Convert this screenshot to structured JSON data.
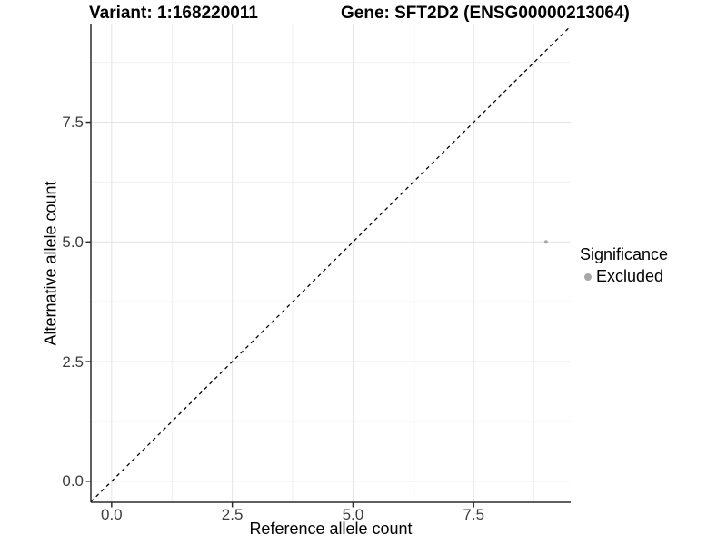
{
  "title": {
    "variant": "Variant: 1:168220011",
    "gene": "Gene: SFT2D2 (ENSG00000213064)"
  },
  "axes": {
    "x_label": "Reference allele count",
    "y_label": "Alternative allele count",
    "x_tick_labels": [
      "0.0",
      "2.5",
      "5.0",
      "7.5"
    ],
    "y_tick_labels": [
      "0.0",
      "2.5",
      "5.0",
      "7.5"
    ]
  },
  "legend": {
    "title": "Significance",
    "items": [
      {
        "label": "Excluded",
        "color": "#a8a8a8"
      }
    ]
  },
  "colors": {
    "background": "#ffffff",
    "grid_major": "#e4e4e4",
    "grid_minor": "#efefef",
    "axis_line": "#2b2b2b",
    "tick_mark": "#2b2b2b",
    "tick_label": "#3d3d3d",
    "title_text": "#000000",
    "point": "#a8a8a8",
    "reference_line": "#000000"
  },
  "chart_data": {
    "type": "scatter",
    "title": "Variant: 1:168220011   Gene: SFT2D2 (ENSG00000213064)",
    "xlabel": "Reference allele count",
    "ylabel": "Alternative allele count",
    "xlim": [
      -0.43,
      9.51
    ],
    "ylim": [
      -0.44,
      9.56
    ],
    "x_ticks": [
      0.0,
      2.5,
      5.0,
      7.5
    ],
    "y_ticks": [
      0.0,
      2.5,
      5.0,
      7.5
    ],
    "x_minor_ticks": [
      1.25,
      3.75,
      6.25,
      8.75
    ],
    "y_minor_ticks": [
      1.25,
      3.75,
      6.25,
      8.75
    ],
    "grid": true,
    "legend_position": "right",
    "series": [
      {
        "name": "Excluded",
        "color": "#a8a8a8",
        "marker": "circle",
        "points": [
          {
            "x": 9,
            "y": 5
          }
        ]
      }
    ],
    "reference_line": {
      "slope": 1,
      "intercept": 0,
      "style": "dashed",
      "color": "#000000"
    }
  }
}
